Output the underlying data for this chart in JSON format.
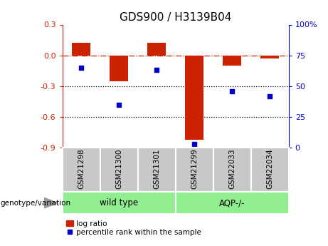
{
  "title": "GDS900 / H3139B04",
  "samples": [
    "GSM21298",
    "GSM21300",
    "GSM21301",
    "GSM21299",
    "GSM22033",
    "GSM22034"
  ],
  "log_ratios": [
    0.12,
    -0.25,
    0.12,
    -0.82,
    -0.1,
    -0.03
  ],
  "percentile_ranks": [
    65,
    35,
    63,
    3,
    46,
    42
  ],
  "bar_color": "#cc2200",
  "dot_color": "#0000cc",
  "left_ylim": [
    -0.9,
    0.3
  ],
  "right_ylim": [
    0,
    100
  ],
  "left_yticks": [
    0.3,
    0.0,
    -0.3,
    -0.6,
    -0.9
  ],
  "right_yticks": [
    100,
    75,
    50,
    25,
    0
  ],
  "label_logr": "log ratio",
  "label_pct": "percentile rank within the sample",
  "group_label": "genotype/variation",
  "group_names": [
    "wild type",
    "AQP-/-"
  ],
  "gray_color": "#c8c8c8",
  "green_color": "#90ee90",
  "arrow_color": "#999999"
}
